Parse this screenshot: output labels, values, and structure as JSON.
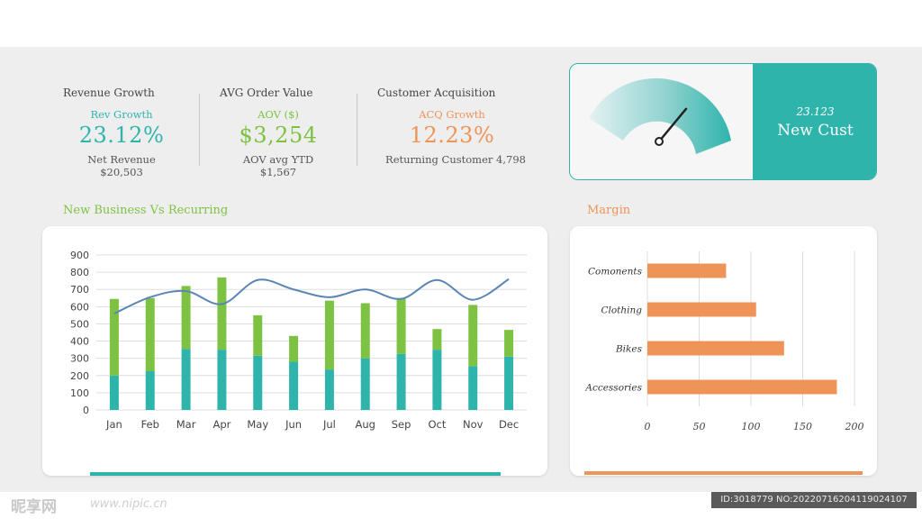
{
  "kpis": [
    {
      "header": "Revenue Growth",
      "sublabel": "Rev Growth",
      "value": "23.12%",
      "foot1": "Net Revenue",
      "foot2": "$20,503",
      "color": "#2fb4ac"
    },
    {
      "header": "AVG Order Value",
      "sublabel": "AOV ($)",
      "value": "$3,254",
      "foot1": "AOV avg YTD",
      "foot2": "$1,567",
      "color": "#7dc242"
    },
    {
      "header": "Customer Acquisition",
      "sublabel": "ACQ Growth",
      "value": "12.23%",
      "foot1": "Returning Customer 4,798",
      "foot2": "",
      "color": "#ef9458"
    }
  ],
  "gauge": {
    "value": "23.123",
    "label": "New Cust",
    "accent": "#2fb4ac",
    "level": 0.72
  },
  "sections": {
    "left_title": "New Business Vs Recurring",
    "right_title": "Margin"
  },
  "colors": {
    "green": "#7dc242",
    "teal": "#2fb4ac",
    "line": "#5b85b5",
    "orange": "#ef9458"
  },
  "watermark": {
    "brand": "昵享网",
    "url": "www.nipic.cn",
    "id": "ID:3018779 NO:20220716204119024107"
  },
  "chart_data": [
    {
      "type": "bar",
      "stacked": true,
      "categories": [
        "Jan",
        "Feb",
        "Mar",
        "Apr",
        "May",
        "Jun",
        "Jul",
        "Aug",
        "Sep",
        "Oct",
        "Nov",
        "Dec"
      ],
      "series": [
        {
          "values": [
            200,
            225,
            355,
            350,
            315,
            280,
            235,
            300,
            325,
            350,
            255,
            310
          ]
        },
        {
          "values": [
            445,
            425,
            365,
            420,
            235,
            150,
            400,
            320,
            325,
            120,
            355,
            155
          ]
        },
        {
          "type": "line",
          "values": [
            560,
            655,
            690,
            615,
            755,
            700,
            655,
            700,
            645,
            755,
            640,
            760
          ]
        }
      ],
      "ylim": [
        0,
        900
      ],
      "yticks": [
        0,
        100,
        200,
        300,
        400,
        500,
        600,
        700,
        800,
        900
      ],
      "grid": true
    },
    {
      "type": "bar",
      "orientation": "horizontal",
      "categories": [
        "Comonents",
        "Clothing",
        "Bikes",
        "Accessories"
      ],
      "values": [
        76,
        105,
        132,
        183
      ],
      "xlim": [
        0,
        200
      ],
      "xticks": [
        0,
        50,
        100,
        150,
        200
      ],
      "grid": true
    }
  ]
}
